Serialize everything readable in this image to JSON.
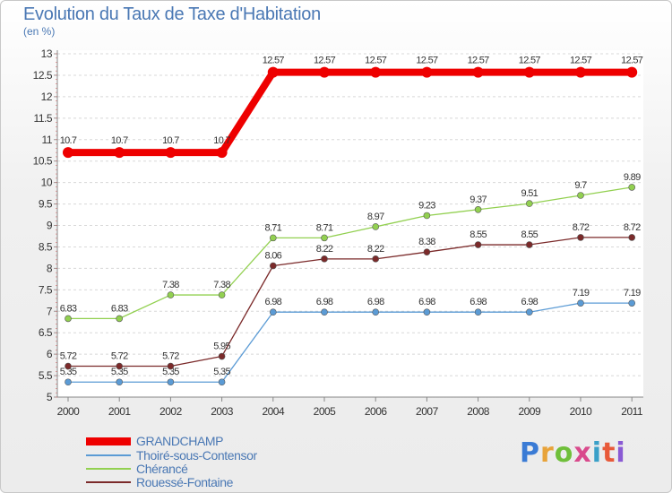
{
  "header": {
    "title": "Evolution du Taux de Taxe d'Habitation",
    "subtitle": "(en %)"
  },
  "logo": {
    "text": "Proxiti",
    "colors": [
      "#3a7bd5",
      "#e8a33a",
      "#6fbf3a",
      "#d94a8c",
      "#3aa0c8",
      "#e85a3a",
      "#8a5ad4"
    ]
  },
  "chart_data": {
    "type": "line",
    "x": [
      2000,
      2001,
      2002,
      2003,
      2004,
      2005,
      2006,
      2007,
      2008,
      2009,
      2010,
      2011
    ],
    "ylim": [
      5,
      13
    ],
    "y_ticks": [
      "5",
      "5.5",
      "6",
      "6.5",
      "7",
      "7.5",
      "8",
      "8.5",
      "9",
      "9.5",
      "10",
      "10.5",
      "11",
      "11.5",
      "12",
      "12.5",
      "13"
    ],
    "grid": "horizontal dashed",
    "legend_position": "bottom-left",
    "series": [
      {
        "name": "GRANDCHAMP",
        "color": "#ee0000",
        "values": [
          10.7,
          10.7,
          10.7,
          10.7,
          12.57,
          12.57,
          12.57,
          12.57,
          12.57,
          12.57,
          12.57,
          12.57
        ],
        "labels": [
          "10.7",
          "10.7",
          "10.7",
          "10.7",
          "12.57",
          "12.57",
          "12.57",
          "12.57",
          "12.57",
          "12.57",
          "12.57",
          "12.57"
        ]
      },
      {
        "name": "Thoiré-sous-Contensor",
        "color": "#5b9bd5",
        "values": [
          5.35,
          5.35,
          5.35,
          5.35,
          6.98,
          6.98,
          6.98,
          6.98,
          6.98,
          6.98,
          7.19,
          7.19
        ],
        "labels": [
          "5.35",
          "5.35",
          "5.35",
          "5.35",
          "6.98",
          "6.98",
          "6.98",
          "6.98",
          "6.98",
          "6.98",
          "7.19",
          "7.19"
        ]
      },
      {
        "name": "Chérancé",
        "color": "#92d050",
        "values": [
          6.83,
          6.83,
          7.38,
          7.38,
          8.71,
          8.71,
          8.97,
          9.23,
          9.37,
          9.51,
          9.7,
          9.89
        ],
        "labels": [
          "6.83",
          "6.83",
          "7.38",
          "7.38",
          "8.71",
          "8.71",
          "8.97",
          "9.23",
          "9.37",
          "9.51",
          "9.7",
          "9.89"
        ]
      },
      {
        "name": "Rouessé-Fontaine",
        "color": "#7b2a2a",
        "values": [
          5.72,
          5.72,
          5.72,
          5.95,
          8.06,
          8.22,
          8.22,
          8.38,
          8.55,
          8.55,
          8.72,
          8.72
        ],
        "labels": [
          "5.72",
          "5.72",
          "5.72",
          "5.95",
          "8.06",
          "8.22",
          "8.22",
          "8.38",
          "8.55",
          "8.55",
          "8.72",
          "8.72"
        ]
      }
    ]
  }
}
